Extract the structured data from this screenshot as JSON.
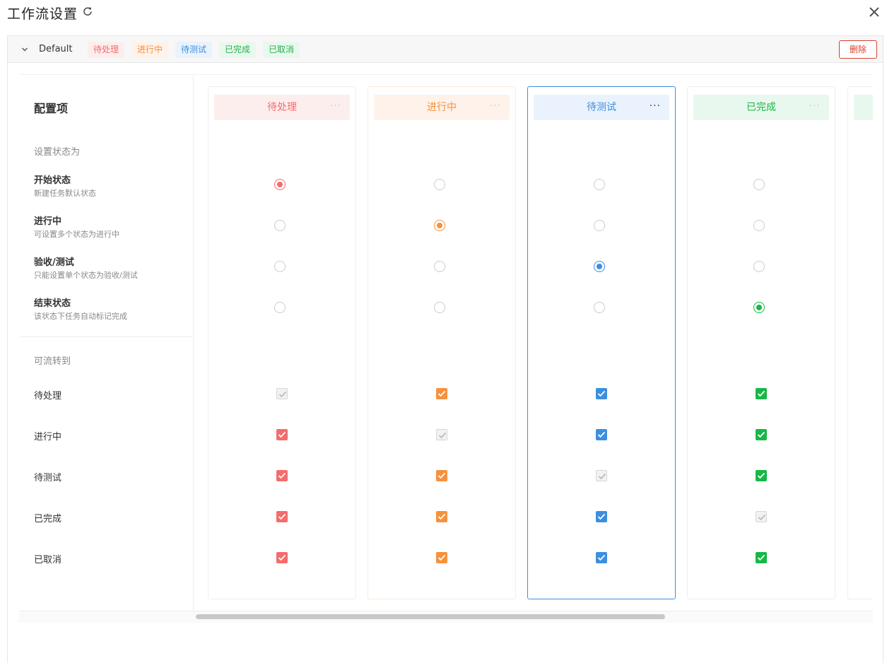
{
  "dialog": {
    "title": "工作流设置",
    "refresh_icon": "refresh-icon",
    "close_icon": "close-icon"
  },
  "workflow": {
    "name": "Default",
    "collapse_icon": "chevron-down-icon",
    "delete_label": "删除",
    "tags": [
      {
        "label": "待处理",
        "color": "#f56c6c"
      },
      {
        "label": "进行中",
        "color": "#f7913d"
      },
      {
        "label": "待测试",
        "color": "#3c8fe0"
      },
      {
        "label": "已完成",
        "color": "#27b148"
      },
      {
        "label": "已取消",
        "color": "#27b148"
      }
    ]
  },
  "config": {
    "header": "配置项",
    "set_state_label": "设置状态为",
    "state_rows": [
      {
        "title": "开始状态",
        "desc": "新建任务默认状态"
      },
      {
        "title": "进行中",
        "desc": "可设置多个状态为进行中"
      },
      {
        "title": "验收/测试",
        "desc": "只能设置单个状态为验收/测试"
      },
      {
        "title": "结束状态",
        "desc": "该状态下任务自动标记完成"
      }
    ],
    "transition_label": "可流转到",
    "transition_rows": [
      "待处理",
      "进行中",
      "待测试",
      "已完成",
      "已取消"
    ]
  },
  "columns": [
    {
      "name": "待处理",
      "color": "#f56c6c",
      "bg": "#fdeeee",
      "state_index": 0,
      "disabled_index": 0,
      "active": false
    },
    {
      "name": "进行中",
      "color": "#f7913d",
      "bg": "#fef2ea",
      "state_index": 1,
      "disabled_index": 1,
      "active": false
    },
    {
      "name": "待测试",
      "color": "#3c8fe0",
      "bg": "#eaf3fd",
      "state_index": 2,
      "disabled_index": 2,
      "active": true
    },
    {
      "name": "已完成",
      "color": "#17b845",
      "bg": "#e9f8ee",
      "state_index": 3,
      "disabled_index": 3,
      "active": false
    }
  ],
  "scrollbar": {
    "position": 0.2
  }
}
